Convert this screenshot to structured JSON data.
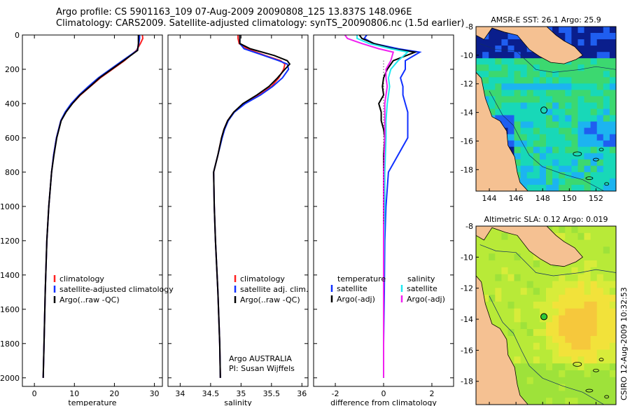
{
  "header": {
    "line1": "Argo profile: CS 5901163_109 07-Aug-2009 20090808_125 13.837S 148.096E",
    "line2": "Climatology: CARS2009. Satellite-adjusted climatology: synTS_20090806.nc (1.5d earlier)"
  },
  "footer": {
    "credit": "CSIRO 12-Aug-2009 10:32:53",
    "float_label": "Argo AUSTRALIA",
    "pi_label": "PI: Susan Wijffels"
  },
  "colors": {
    "climatology": "#ff2020",
    "satellite": "#1030ff",
    "argo": "#000000",
    "satellite_sal": "#20e8f0",
    "argo_sal": "#f020f0",
    "land": "#f5c192"
  },
  "chart_data": [
    {
      "type": "line",
      "name": "temperature",
      "xlabel": "temperature",
      "ylabel": "",
      "xlim": [
        -3,
        32
      ],
      "ylim": [
        2050,
        0
      ],
      "xticks": [
        "0",
        "10",
        "20",
        "30"
      ],
      "yticks": [
        "0",
        "200",
        "400",
        "600",
        "800",
        "1000",
        "1200",
        "1400",
        "1600",
        "1800",
        "2000"
      ],
      "legend": [
        "climatology",
        "satellite-adjusted climatology",
        "Argo(..raw -QC)"
      ],
      "series": [
        {
          "name": "climatology",
          "depth": [
            0,
            20,
            50,
            90,
            150,
            200,
            250,
            300,
            350,
            400,
            450,
            500,
            600,
            700,
            800,
            1000,
            1200,
            1500,
            1800,
            2000
          ],
          "values": [
            27.0,
            27.1,
            26.5,
            25.5,
            22.5,
            19.5,
            16.5,
            14.0,
            11.5,
            9.5,
            7.8,
            6.6,
            5.5,
            4.8,
            4.3,
            3.6,
            3.1,
            2.7,
            2.4,
            2.2
          ]
        },
        {
          "name": "satellite-adjusted climatology",
          "depth": [
            0,
            20,
            50,
            90,
            150,
            200,
            250,
            300,
            350,
            400,
            450,
            500,
            600,
            700,
            800,
            1000,
            1200,
            1500,
            1800,
            2000
          ],
          "values": [
            26.3,
            26.3,
            26.1,
            25.7,
            22.0,
            19.0,
            16.0,
            13.5,
            11.2,
            9.2,
            7.7,
            6.6,
            5.5,
            4.8,
            4.3,
            3.6,
            3.1,
            2.7,
            2.4,
            2.2
          ]
        },
        {
          "name": "Argo(..raw -QC)",
          "depth": [
            0,
            20,
            50,
            90,
            150,
            200,
            250,
            300,
            350,
            400,
            450,
            500,
            600,
            700,
            800,
            1000,
            1200,
            1500,
            1800,
            2000
          ],
          "values": [
            26.0,
            26.0,
            26.0,
            25.8,
            22.3,
            19.3,
            16.3,
            13.9,
            11.4,
            9.5,
            7.9,
            6.7,
            5.6,
            4.9,
            4.3,
            3.6,
            3.1,
            2.7,
            2.4,
            2.2
          ]
        }
      ]
    },
    {
      "type": "line",
      "name": "salinity",
      "xlabel": "salinity",
      "xlim": [
        33.8,
        36.1
      ],
      "ylim": [
        2050,
        0
      ],
      "xticks": [
        "34",
        "34.5",
        "35",
        "35.5",
        "36"
      ],
      "legend": [
        "climatology",
        "satellite adj. clim.",
        "Argo(..raw -QC)"
      ],
      "series": [
        {
          "name": "climatology",
          "depth": [
            0,
            20,
            50,
            80,
            120,
            150,
            170,
            200,
            250,
            300,
            350,
            400,
            450,
            500,
            550,
            600,
            700,
            800,
            1000,
            1200,
            1500,
            1800,
            2000
          ],
          "values": [
            34.95,
            34.95,
            34.97,
            35.1,
            35.4,
            35.65,
            35.72,
            35.7,
            35.62,
            35.5,
            35.3,
            35.05,
            34.88,
            34.78,
            34.72,
            34.68,
            34.62,
            34.55,
            34.56,
            34.58,
            34.62,
            34.65,
            34.66
          ]
        },
        {
          "name": "satellite adj. clim.",
          "depth": [
            0,
            20,
            50,
            80,
            120,
            150,
            170,
            200,
            250,
            300,
            350,
            400,
            450,
            500,
            550,
            600,
            700,
            800,
            1000,
            1200,
            1500,
            1800,
            2000
          ],
          "values": [
            34.98,
            34.98,
            34.98,
            35.05,
            35.38,
            35.62,
            35.76,
            35.78,
            35.68,
            35.52,
            35.32,
            35.07,
            34.89,
            34.79,
            34.73,
            34.69,
            34.62,
            34.55,
            34.56,
            34.58,
            34.62,
            34.65,
            34.66
          ]
        },
        {
          "name": "Argo(..raw -QC)",
          "depth": [
            0,
            20,
            50,
            80,
            120,
            150,
            170,
            200,
            250,
            300,
            350,
            400,
            450,
            500,
            550,
            600,
            700,
            800,
            1000,
            1200,
            1500,
            1800,
            2000
          ],
          "values": [
            34.98,
            34.98,
            34.98,
            35.15,
            35.55,
            35.76,
            35.8,
            35.72,
            35.6,
            35.46,
            35.26,
            35.03,
            34.88,
            34.78,
            34.72,
            34.68,
            34.62,
            34.55,
            34.56,
            34.58,
            34.62,
            34.65,
            34.66
          ]
        }
      ]
    },
    {
      "type": "line",
      "name": "difference from climatology",
      "xlabel": "difference from climatology",
      "xlim": [
        -2.9,
        2.9
      ],
      "ylim": [
        2050,
        0
      ],
      "xticks": [
        "-2",
        "0",
        "2"
      ],
      "legend_temperature": [
        "temperature",
        "satellite",
        "Argo(-adj)"
      ],
      "legend_salinity": [
        "salinity",
        "satellite",
        "Argo(-adj)"
      ],
      "series": [
        {
          "name": "temperature satellite",
          "depth": [
            0,
            20,
            50,
            80,
            100,
            150,
            200,
            250,
            300,
            350,
            400,
            450,
            500,
            550,
            600,
            700,
            800,
            1000,
            1200,
            1500,
            1800,
            2000
          ],
          "values": [
            -0.7,
            -0.8,
            -0.4,
            0.6,
            1.5,
            0.9,
            0.9,
            0.7,
            0.8,
            0.8,
            0.9,
            1.0,
            1.0,
            1.0,
            1.0,
            0.6,
            0.2,
            0.1,
            0.05,
            0.03,
            0.0,
            0.0
          ]
        },
        {
          "name": "temperature Argo(-adj)",
          "depth": [
            0,
            20,
            50,
            80,
            100,
            150,
            200,
            250,
            300,
            350,
            400,
            450,
            500,
            550,
            600,
            700,
            800,
            1000,
            1200,
            1500,
            1800,
            2000
          ],
          "values": [
            -1.0,
            -0.9,
            -0.4,
            0.4,
            1.3,
            0.4,
            0.15,
            0.0,
            -0.05,
            0.0,
            -0.2,
            -0.1,
            -0.1,
            0.0,
            0.05,
            0.0,
            0.0,
            0.0,
            0.0,
            0.0,
            0.0,
            0.0
          ]
        },
        {
          "name": "salinity satellite",
          "depth": [
            0,
            20,
            50,
            80,
            100,
            150,
            200,
            250,
            300,
            350,
            400,
            500,
            600,
            800,
            1000,
            1200,
            1500,
            1800,
            2000
          ],
          "values": [
            -1.1,
            -1.1,
            -0.6,
            0.3,
            1.0,
            0.6,
            0.3,
            0.2,
            0.25,
            0.2,
            0.15,
            0.1,
            0.1,
            0.05,
            0.05,
            0.02,
            0.0,
            0.0,
            0.0
          ]
        },
        {
          "name": "salinity Argo(-adj)",
          "depth": [
            0,
            20,
            50,
            80,
            100,
            150,
            200,
            250,
            300,
            350,
            400,
            500,
            600,
            800,
            1000,
            1200,
            1500,
            1800,
            2000
          ],
          "values": [
            -1.6,
            -1.5,
            -0.9,
            -0.2,
            0.4,
            0.3,
            0.1,
            0.1,
            0.15,
            0.1,
            0.05,
            0.05,
            0.05,
            0.0,
            0.0,
            0.0,
            0.0,
            0.0,
            0.0
          ]
        }
      ]
    },
    {
      "type": "heatmap",
      "name": "sst-map",
      "title": "AMSR-E SST: 26.1 Argo: 25.9",
      "xlim": [
        143,
        153.5
      ],
      "ylim": [
        -19.5,
        -8
      ],
      "xticks": [
        "144",
        "146",
        "148",
        "150",
        "152"
      ],
      "yticks": [
        "-8",
        "-10",
        "-12",
        "-14",
        "-16",
        "-18"
      ],
      "float_lon": 148.096,
      "float_lat": -13.837
    },
    {
      "type": "heatmap",
      "name": "sla-map",
      "title": "Altimetric SLA: 0.12 Argo: 0.019",
      "xlim": [
        143,
        153.5
      ],
      "ylim": [
        -19.5,
        -8
      ],
      "xticks": [
        "144",
        "146",
        "148",
        "150",
        "152"
      ],
      "yticks": [
        "-8",
        "-10",
        "-12",
        "-14",
        "-16",
        "-18"
      ],
      "float_lon": 148.096,
      "float_lat": -13.837
    }
  ]
}
